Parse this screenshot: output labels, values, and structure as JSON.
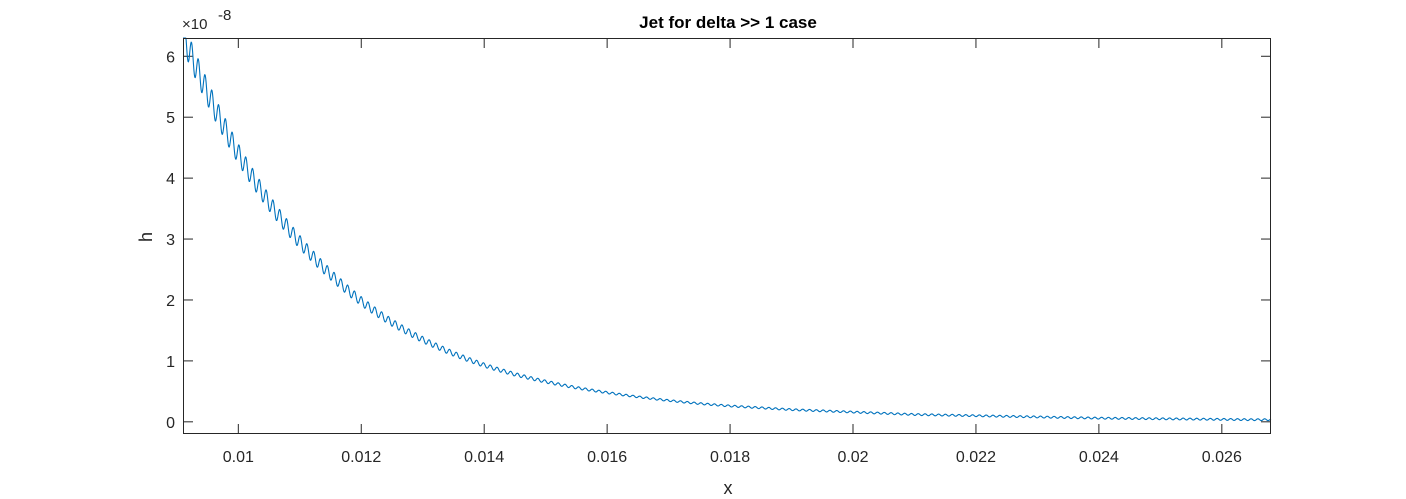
{
  "chart_data": {
    "type": "line",
    "title": "Jet for delta >> 1 case",
    "xlabel": "x",
    "ylabel": "h",
    "y_exponent_label": "×10",
    "y_exponent_power": "-8",
    "xlim": [
      0.0091,
      0.0268
    ],
    "ylim": [
      -0.2,
      6.3
    ],
    "x_ticks": [
      0.01,
      0.012,
      0.014,
      0.016,
      0.018,
      0.02,
      0.022,
      0.024,
      0.026
    ],
    "x_tick_labels": [
      "0.01",
      "0.012",
      "0.014",
      "0.016",
      "0.018",
      "0.02",
      "0.022",
      "0.024",
      "0.026"
    ],
    "y_ticks": [
      0,
      1,
      2,
      3,
      4,
      5,
      6
    ],
    "y_tick_labels": [
      "0",
      "1",
      "2",
      "3",
      "4",
      "5",
      "6"
    ],
    "grid": false,
    "color": "#0072BD",
    "series": [
      {
        "x": [
          0.0091,
          0.0095,
          0.01,
          0.0105,
          0.011,
          0.0115,
          0.012,
          0.0125,
          0.013,
          0.0135,
          0.014,
          0.0145,
          0.015,
          0.0155,
          0.016,
          0.0165,
          0.017,
          0.0175,
          0.018,
          0.0185,
          0.019,
          0.0195,
          0.02,
          0.0205,
          0.021,
          0.0215,
          0.022,
          0.0225,
          0.023,
          0.0235,
          0.024,
          0.0245,
          0.025,
          0.0255,
          0.026,
          0.0265,
          0.0268
        ],
        "values": [
          6.35,
          5.4,
          4.4,
          3.6,
          2.95,
          2.42,
          1.98,
          1.63,
          1.35,
          1.12,
          0.93,
          0.78,
          0.66,
          0.56,
          0.48,
          0.41,
          0.35,
          0.3,
          0.26,
          0.23,
          0.2,
          0.18,
          0.16,
          0.14,
          0.12,
          0.11,
          0.1,
          0.09,
          0.08,
          0.07,
          0.06,
          0.055,
          0.05,
          0.045,
          0.04,
          0.035,
          0.035
        ],
        "ripple_period": 0.0001105,
        "ripple_relative_amplitude": 0.075,
        "ripple_min_amplitude": 0.025
      }
    ]
  }
}
